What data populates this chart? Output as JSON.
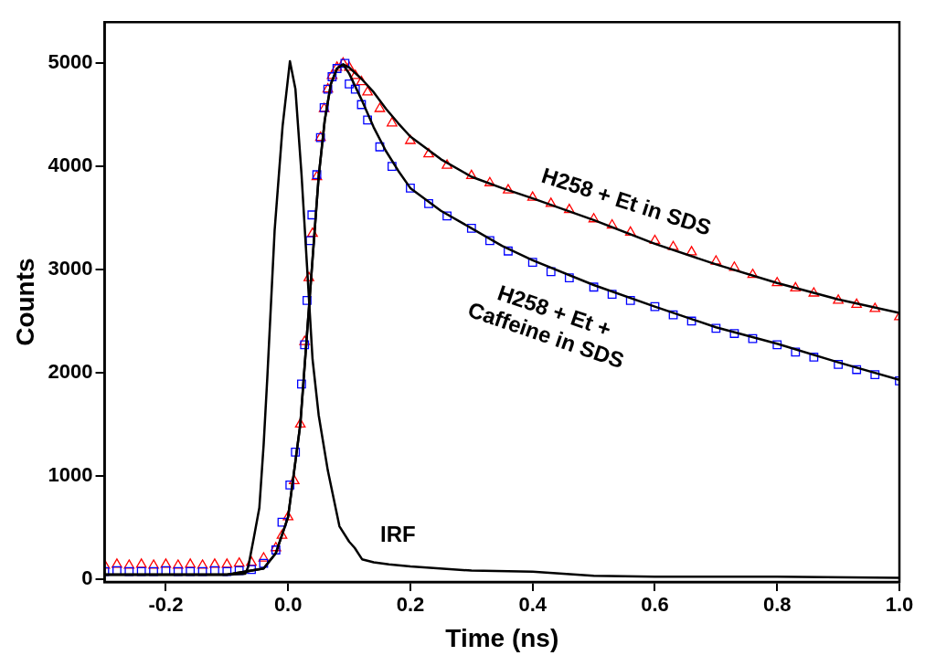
{
  "chart_data": {
    "type": "scatter",
    "xlabel": "Time (ns)",
    "ylabel": "Counts",
    "xlim": [
      -0.3,
      1.0
    ],
    "ylim": [
      -30,
      5400
    ],
    "xticks": [
      -0.2,
      {
        "value": 0,
        "label": "0.0"
      },
      0.2,
      0.4,
      0.6,
      0.8,
      {
        "value": 1,
        "label": "1.0"
      }
    ],
    "yticks": [
      0,
      1000,
      2000,
      3000,
      4000,
      5000
    ],
    "grid": false,
    "legend": false,
    "series": [
      {
        "marker": "triangle",
        "color": "#ff0000",
        "x": [
          -0.3,
          -0.28,
          -0.26,
          -0.24,
          -0.22,
          -0.2,
          -0.18,
          -0.16,
          -0.14,
          -0.12,
          -0.1,
          -0.08,
          -0.06,
          -0.04,
          -0.02,
          -0.01,
          0.0,
          0.01,
          0.02,
          0.027,
          0.034,
          0.04,
          0.047,
          0.053,
          0.059,
          0.065,
          0.072,
          0.08,
          0.09,
          0.1,
          0.11,
          0.12,
          0.13,
          0.15,
          0.17,
          0.2,
          0.23,
          0.26,
          0.3,
          0.33,
          0.36,
          0.4,
          0.43,
          0.46,
          0.5,
          0.53,
          0.56,
          0.6,
          0.63,
          0.66,
          0.7,
          0.73,
          0.76,
          0.8,
          0.83,
          0.86,
          0.9,
          0.93,
          0.96,
          1.0
        ],
        "values": [
          130,
          140,
          130,
          140,
          130,
          140,
          130,
          140,
          130,
          140,
          140,
          150,
          160,
          200,
          300,
          420,
          600,
          950,
          1500,
          2300,
          2920,
          3350,
          3900,
          4280,
          4560,
          4750,
          4880,
          4960,
          5000,
          4960,
          4880,
          4820,
          4720,
          4560,
          4420,
          4250,
          4120,
          4010,
          3910,
          3840,
          3770,
          3700,
          3640,
          3580,
          3490,
          3430,
          3360,
          3280,
          3220,
          3170,
          3080,
          3020,
          2950,
          2870,
          2820,
          2770,
          2700,
          2660,
          2620,
          2540
        ]
      },
      {
        "marker": "square",
        "color": "#0000ff",
        "x": [
          -0.3,
          -0.28,
          -0.26,
          -0.24,
          -0.22,
          -0.2,
          -0.18,
          -0.16,
          -0.14,
          -0.12,
          -0.1,
          -0.08,
          -0.06,
          -0.04,
          -0.02,
          -0.01,
          0.003,
          0.012,
          0.022,
          0.027,
          0.031,
          0.036,
          0.039,
          0.047,
          0.053,
          0.059,
          0.065,
          0.072,
          0.08,
          0.093,
          0.1,
          0.11,
          0.12,
          0.13,
          0.15,
          0.17,
          0.2,
          0.23,
          0.26,
          0.3,
          0.33,
          0.36,
          0.4,
          0.43,
          0.46,
          0.5,
          0.53,
          0.56,
          0.6,
          0.63,
          0.66,
          0.7,
          0.73,
          0.76,
          0.8,
          0.83,
          0.86,
          0.9,
          0.93,
          0.96,
          1.0
        ],
        "values": [
          70,
          80,
          70,
          70,
          70,
          80,
          70,
          70,
          70,
          80,
          70,
          80,
          90,
          150,
          280,
          550,
          910,
          1230,
          1890,
          2270,
          2700,
          3280,
          3530,
          3920,
          4280,
          4570,
          4750,
          4870,
          4950,
          5000,
          4800,
          4750,
          4600,
          4450,
          4190,
          4000,
          3790,
          3640,
          3520,
          3400,
          3280,
          3180,
          3070,
          2980,
          2920,
          2830,
          2760,
          2700,
          2640,
          2560,
          2500,
          2430,
          2380,
          2330,
          2270,
          2200,
          2150,
          2080,
          2030,
          1980,
          1920
        ]
      },
      {
        "type": "line",
        "marker": "none",
        "color": "#000000",
        "x": [
          -0.3,
          -0.1,
          -0.04,
          -0.02,
          0.0,
          0.02,
          0.03,
          0.04,
          0.05,
          0.06,
          0.07,
          0.08,
          0.09,
          0.1,
          0.12,
          0.14,
          0.16,
          0.18,
          0.2,
          0.25,
          0.3,
          0.35,
          0.4,
          0.5,
          0.6,
          0.7,
          0.8,
          0.9,
          1.0
        ],
        "values": [
          40,
          40,
          100,
          250,
          600,
          1500,
          2300,
          3100,
          3900,
          4450,
          4800,
          4950,
          4990,
          4960,
          4850,
          4720,
          4560,
          4420,
          4290,
          4070,
          3900,
          3790,
          3690,
          3480,
          3250,
          3050,
          2870,
          2710,
          2580
        ]
      },
      {
        "type": "line",
        "marker": "none",
        "color": "#000000",
        "x": [
          -0.3,
          -0.1,
          -0.04,
          -0.02,
          0.0,
          0.02,
          0.03,
          0.04,
          0.05,
          0.06,
          0.07,
          0.08,
          0.09,
          0.1,
          0.12,
          0.14,
          0.16,
          0.18,
          0.2,
          0.25,
          0.3,
          0.35,
          0.4,
          0.5,
          0.6,
          0.7,
          0.8,
          0.9,
          1.0
        ],
        "values": [
          40,
          40,
          100,
          250,
          600,
          1500,
          2300,
          3100,
          3900,
          4450,
          4800,
          4950,
          4990,
          4900,
          4650,
          4380,
          4150,
          3960,
          3790,
          3570,
          3400,
          3230,
          3090,
          2850,
          2640,
          2440,
          2280,
          2100,
          1930
        ]
      },
      {
        "type": "line",
        "marker": "none",
        "color": "#000000",
        "x": [
          -0.3,
          -0.1,
          -0.07,
          -0.065,
          -0.056,
          -0.047,
          -0.04,
          -0.034,
          -0.022,
          -0.009,
          0.003,
          0.012,
          0.022,
          0.031,
          0.04,
          0.05,
          0.065,
          0.084,
          0.1,
          0.109,
          0.121,
          0.14,
          0.165,
          0.2,
          0.3,
          0.4,
          0.5,
          0.6,
          0.8,
          1.0
        ],
        "values": [
          40,
          40,
          50,
          120,
          400,
          690,
          1300,
          1950,
          3380,
          4390,
          5020,
          4750,
          3920,
          3030,
          2130,
          1590,
          1050,
          510,
          360,
          300,
          190,
          160,
          140,
          120,
          80,
          70,
          30,
          20,
          20,
          10
        ]
      }
    ],
    "annotations": [
      "H258 + Et in SDS",
      "H258 + Et +\nCaffeine in SDS",
      "IRF"
    ]
  }
}
